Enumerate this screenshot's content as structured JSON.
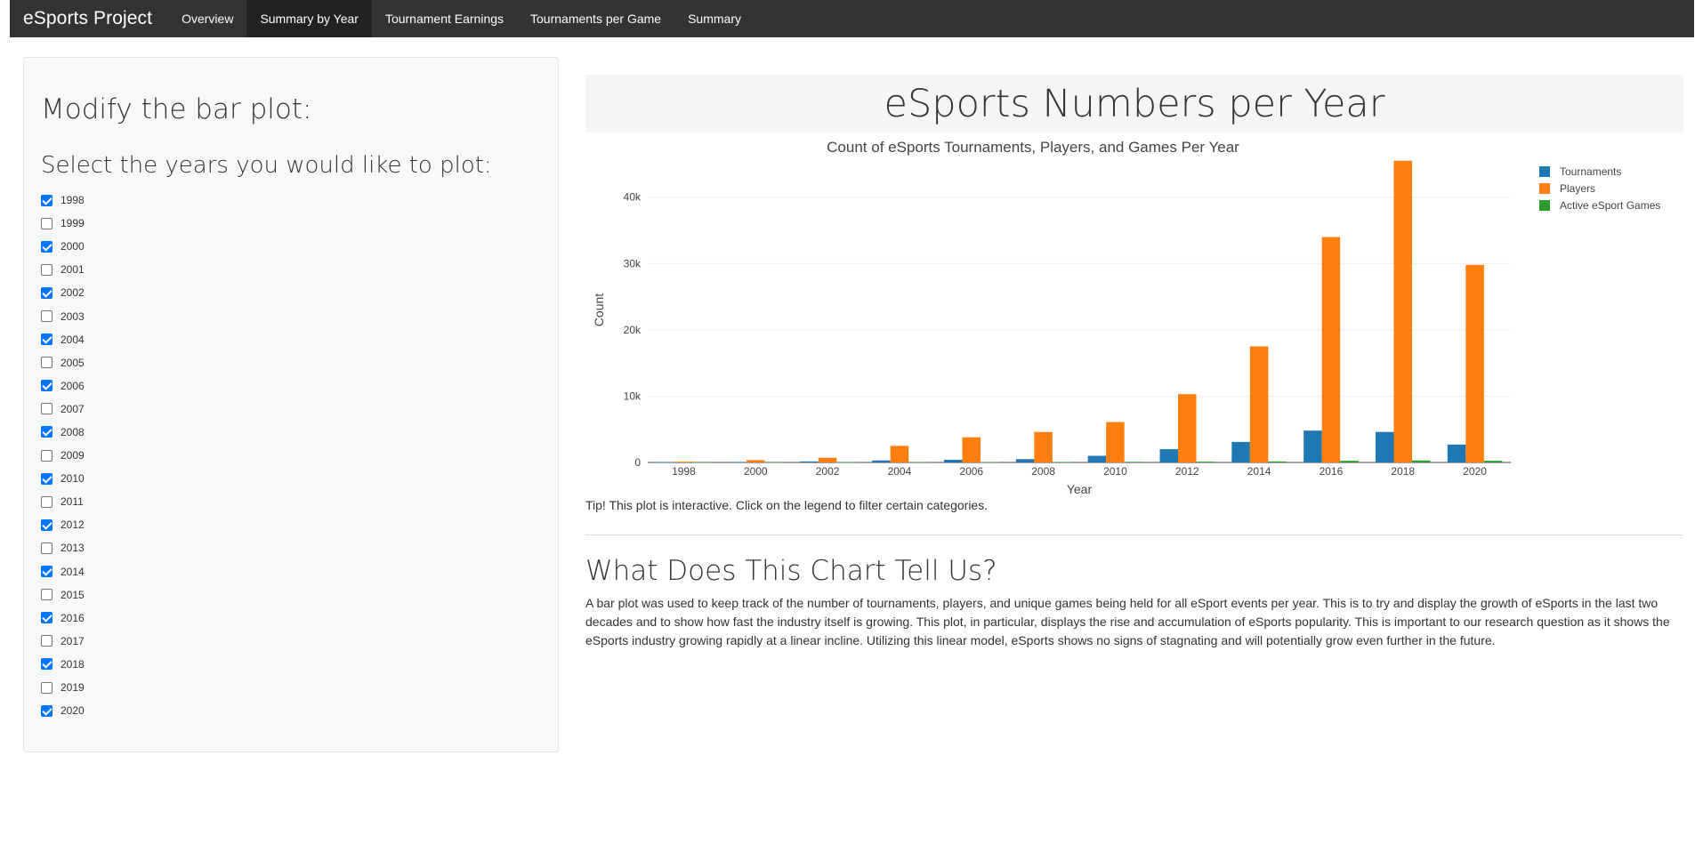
{
  "navbar": {
    "brand": "eSports Project",
    "items": [
      {
        "label": "Overview",
        "active": false
      },
      {
        "label": "Summary by Year",
        "active": true
      },
      {
        "label": "Tournament Earnings",
        "active": false
      },
      {
        "label": "Tournaments per Game",
        "active": false
      },
      {
        "label": "Summary",
        "active": false
      }
    ]
  },
  "sidebar": {
    "heading": "Modify the bar plot:",
    "prompt": "Select the years you would like to plot:",
    "years": [
      {
        "label": "1998",
        "checked": true
      },
      {
        "label": "1999",
        "checked": false
      },
      {
        "label": "2000",
        "checked": true
      },
      {
        "label": "2001",
        "checked": false
      },
      {
        "label": "2002",
        "checked": true
      },
      {
        "label": "2003",
        "checked": false
      },
      {
        "label": "2004",
        "checked": true
      },
      {
        "label": "2005",
        "checked": false
      },
      {
        "label": "2006",
        "checked": true
      },
      {
        "label": "2007",
        "checked": false
      },
      {
        "label": "2008",
        "checked": true
      },
      {
        "label": "2009",
        "checked": false
      },
      {
        "label": "2010",
        "checked": true
      },
      {
        "label": "2011",
        "checked": false
      },
      {
        "label": "2012",
        "checked": true
      },
      {
        "label": "2013",
        "checked": false
      },
      {
        "label": "2014",
        "checked": true
      },
      {
        "label": "2015",
        "checked": false
      },
      {
        "label": "2016",
        "checked": true
      },
      {
        "label": "2017",
        "checked": false
      },
      {
        "label": "2018",
        "checked": true
      },
      {
        "label": "2019",
        "checked": false
      },
      {
        "label": "2020",
        "checked": true
      }
    ]
  },
  "main": {
    "page_title": "eSports Numbers per Year",
    "tip": "Tip! This plot is interactive. Click on the legend to filter certain categories.",
    "section_heading": "What Does This Chart Tell Us?",
    "description": "A bar plot was used to keep track of the number of tournaments, players, and unique games being held for all eSport events per year. This is to try and display the growth of eSports in the last two decades and to show how fast the industry itself is growing. This plot, in particular, displays the rise and accumulation of eSports popularity. This is important to our research question as it shows the eSports industry growing rapidly at a linear incline. Utilizing this linear model, eSports shows no signs of stagnating and will potentially grow even further in the future."
  },
  "chart_data": {
    "type": "bar",
    "title": "Count of eSports Tournaments, Players, and Games Per Year",
    "xlabel": "Year",
    "ylabel": "Count",
    "categories": [
      "1998",
      "2000",
      "2002",
      "2004",
      "2006",
      "2008",
      "2010",
      "2012",
      "2014",
      "2016",
      "2018",
      "2020"
    ],
    "yticks": [
      0,
      10000,
      20000,
      30000,
      40000
    ],
    "ytick_labels": [
      "0",
      "10k",
      "20k",
      "30k",
      "40k"
    ],
    "ylim": [
      0,
      46000
    ],
    "grid": true,
    "legend_position": "top-right",
    "series": [
      {
        "name": "Tournaments",
        "color": "#1f77b4",
        "values": [
          40,
          80,
          150,
          300,
          400,
          500,
          1000,
          2000,
          3100,
          4800,
          4600,
          2700
        ]
      },
      {
        "name": "Players",
        "color": "#ff7f0e",
        "values": [
          120,
          350,
          700,
          2500,
          3800,
          4600,
          6100,
          10300,
          17500,
          34000,
          45500,
          29800
        ]
      },
      {
        "name": "Active eSport Games",
        "color": "#2ca02c",
        "values": [
          10,
          20,
          30,
          50,
          60,
          70,
          90,
          120,
          150,
          250,
          300,
          250
        ]
      }
    ]
  }
}
